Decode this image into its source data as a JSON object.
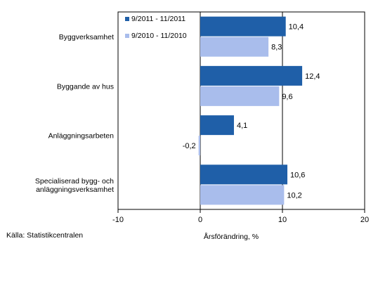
{
  "chart_data": {
    "type": "bar",
    "orientation": "horizontal",
    "categories": [
      [
        "Byggverksamhet"
      ],
      [
        "Byggande av hus"
      ],
      [
        "Anläggningsarbeten"
      ],
      [
        "Specialiserad bygg- och",
        "anläggningsverksamhet"
      ]
    ],
    "series": [
      {
        "name": "9/2011 - 11/2011",
        "values": [
          10.4,
          12.4,
          4.1,
          10.6
        ],
        "labels": [
          "10,4",
          "12,4",
          "4,1",
          "10,6"
        ],
        "color": "#1f5fa8"
      },
      {
        "name": "9/2010 - 11/2010",
        "values": [
          8.3,
          9.6,
          -0.2,
          10.2
        ],
        "labels": [
          "8,3",
          "9,6",
          "-0,2",
          "10,2"
        ],
        "color": "#a9bdec"
      }
    ],
    "xlim": [
      -10,
      20
    ],
    "xticks": [
      -10,
      0,
      10,
      20
    ],
    "xlabel": "Årsförändring, %",
    "legend_position": "top-left-inside",
    "vertical_lines_at": [
      0,
      10
    ]
  },
  "source_text": "Källa: Statistikcentralen"
}
